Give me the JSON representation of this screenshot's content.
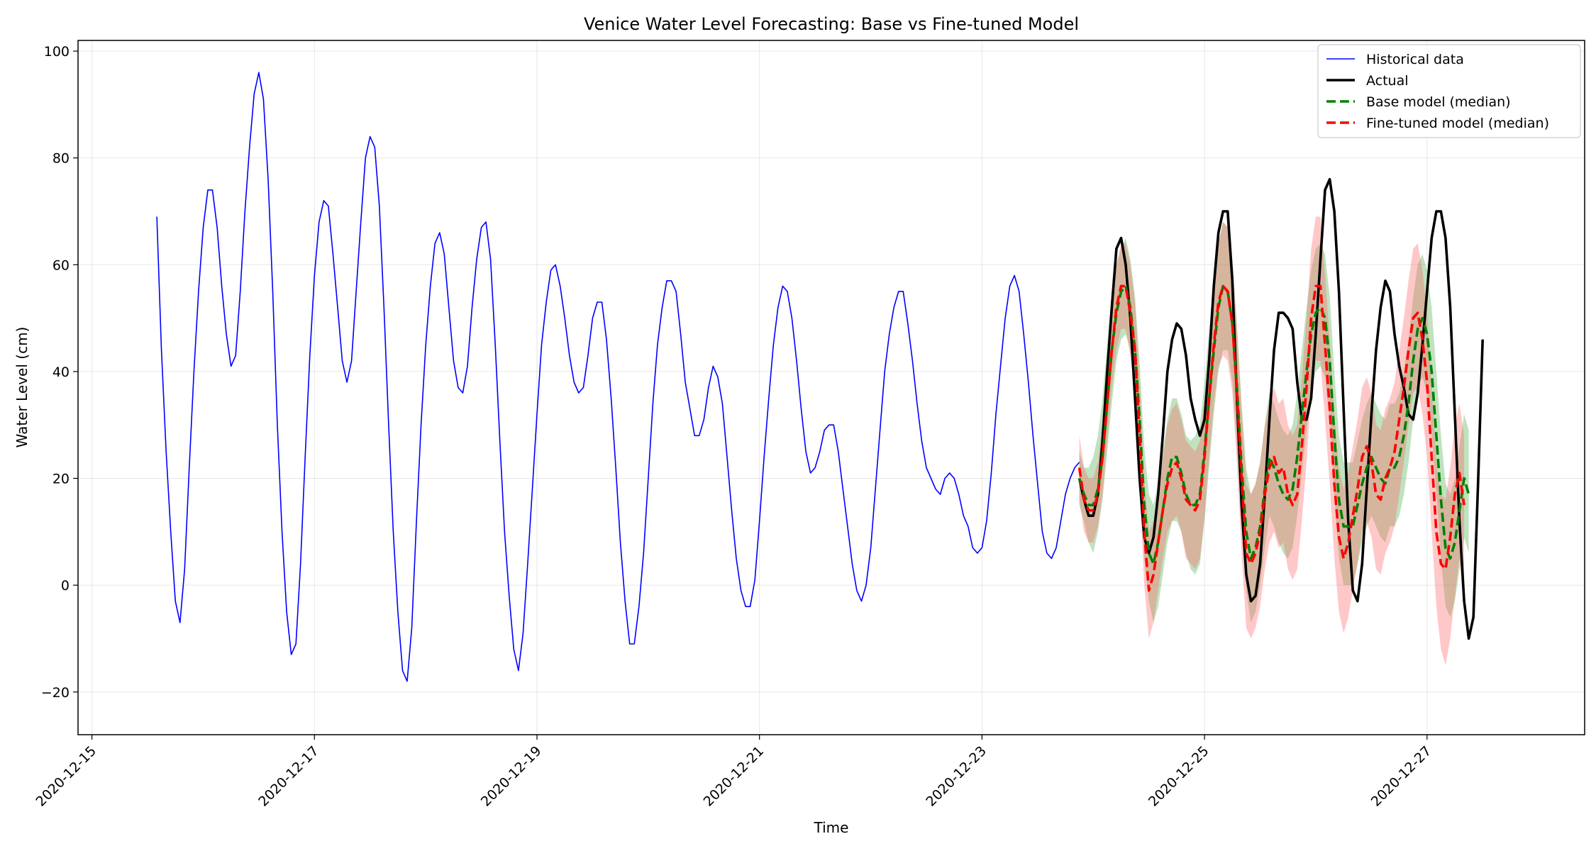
{
  "chart_data": {
    "type": "line",
    "title": "Venice Water Level Forecasting: Base vs Fine-tuned Model",
    "xlabel": "Time",
    "ylabel": "Water Level (cm)",
    "xlim": [
      "2020-12-14T21:00",
      "2020-12-28T10:00"
    ],
    "ylim": [
      -28,
      102
    ],
    "x_ticks": [
      "2020-12-15",
      "2020-12-17",
      "2020-12-19",
      "2020-12-21",
      "2020-12-23",
      "2020-12-25",
      "2020-12-27"
    ],
    "y_ticks": [
      -20,
      0,
      20,
      40,
      60,
      80,
      100
    ],
    "grid": true,
    "legend_position": "top-right",
    "series": [
      {
        "name": "Historical data",
        "color": "#0000ff",
        "style": "solid",
        "start": "2020-12-15T14:00",
        "step_hours": 1,
        "values": [
          69,
          44,
          25,
          10,
          -3,
          -7,
          3,
          22,
          40,
          55,
          67,
          74,
          74,
          67,
          56,
          47,
          41,
          43,
          55,
          70,
          82,
          92,
          96,
          91,
          76,
          55,
          30,
          10,
          -5,
          -13,
          -11,
          4,
          24,
          43,
          58,
          68,
          72,
          71,
          62,
          52,
          42,
          38,
          42,
          55,
          68,
          80,
          84,
          82,
          71,
          52,
          30,
          10,
          -5,
          -16,
          -18,
          -8,
          12,
          30,
          45,
          56,
          64,
          66,
          62,
          52,
          42,
          37,
          36,
          41,
          52,
          61,
          67,
          68,
          61,
          45,
          27,
          10,
          -2,
          -12,
          -16,
          -9,
          4,
          18,
          32,
          45,
          53,
          59,
          60,
          56,
          50,
          43,
          38,
          36,
          37,
          43,
          50,
          53,
          53,
          46,
          35,
          22,
          8,
          -3,
          -11,
          -11,
          -4,
          6,
          20,
          34,
          45,
          52,
          57,
          57,
          55,
          47,
          38,
          33,
          28,
          28,
          31,
          37,
          41,
          39,
          34,
          24,
          14,
          5,
          -1,
          -4,
          -4,
          1,
          12,
          24,
          35,
          45,
          52,
          56,
          55,
          50,
          42,
          33,
          25,
          21,
          22,
          25,
          29,
          30,
          30,
          25,
          18,
          11,
          4,
          -1,
          -3,
          0,
          7,
          18,
          29,
          40,
          47,
          52,
          55,
          55,
          49,
          42,
          34,
          27,
          22,
          20,
          18,
          17,
          20,
          21,
          20,
          17,
          13,
          11,
          7,
          6,
          7,
          12,
          21,
          32,
          41,
          50,
          56,
          58,
          55,
          47,
          38,
          28,
          19,
          10,
          6,
          5,
          7,
          12,
          17,
          20,
          22,
          23
        ]
      },
      {
        "name": "Actual",
        "color": "#000000",
        "style": "solid",
        "start": "2020-12-23T21:00",
        "step_hours": 1,
        "values": [
          20,
          16,
          13,
          13,
          17,
          27,
          40,
          52,
          63,
          65,
          60,
          50,
          35,
          20,
          9,
          6,
          9,
          17,
          28,
          40,
          46,
          49,
          48,
          43,
          35,
          31,
          28,
          31,
          42,
          56,
          66,
          70,
          70,
          57,
          35,
          15,
          2,
          -3,
          -2,
          4,
          17,
          31,
          44,
          51,
          51,
          50,
          48,
          38,
          31,
          31,
          35,
          47,
          61,
          74,
          76,
          70,
          55,
          33,
          12,
          -1,
          -3,
          4,
          18,
          32,
          44,
          52,
          57,
          55,
          47,
          41,
          37,
          32,
          31,
          36,
          45,
          55,
          65,
          70,
          70,
          65,
          52,
          32,
          12,
          -3,
          -10,
          -6,
          19,
          46
        ]
      },
      {
        "name": "Base model (median)",
        "color": "#008000",
        "style": "dashed",
        "band_color": "#2ca02c",
        "start": "2020-12-23T21:00",
        "step_hours": 1,
        "values": [
          20,
          17,
          15,
          15,
          18,
          24,
          34,
          44,
          51,
          55,
          56,
          52,
          44,
          31,
          15,
          6,
          4,
          8,
          14,
          20,
          24,
          24,
          21,
          17,
          15,
          15,
          17,
          25,
          35,
          44,
          52,
          56,
          55,
          49,
          37,
          22,
          10,
          5,
          7,
          11,
          18,
          24,
          22,
          19,
          17,
          16,
          18,
          24,
          32,
          40,
          47,
          51,
          52,
          50,
          42,
          28,
          16,
          11,
          11,
          11,
          15,
          19,
          22,
          24,
          22,
          20,
          19,
          22,
          22,
          24,
          28,
          34,
          42,
          48,
          50,
          47,
          40,
          28,
          16,
          7,
          5,
          8,
          14,
          20,
          17
        ]
      },
      {
        "name": "Fine-tuned model (median)",
        "color": "#ff0000",
        "style": "dashed",
        "band_color": "#ff6060",
        "start": "2020-12-23T21:00",
        "step_hours": 1,
        "values": [
          22,
          16,
          14,
          14,
          17,
          24,
          34,
          44,
          52,
          56,
          56,
          51,
          44,
          28,
          10,
          -1,
          2,
          8,
          14,
          19,
          22,
          23,
          20,
          16,
          15,
          14,
          16,
          24,
          35,
          45,
          53,
          56,
          55,
          49,
          36,
          20,
          6,
          4,
          6,
          10,
          17,
          22,
          24,
          21,
          22,
          17,
          15,
          17,
          26,
          37,
          50,
          56,
          56,
          45,
          33,
          19,
          9,
          5,
          8,
          13,
          18,
          24,
          26,
          23,
          17,
          16,
          20,
          22,
          25,
          31,
          37,
          44,
          50,
          51,
          46,
          38,
          24,
          10,
          4,
          3,
          9,
          17,
          21,
          15
        ]
      }
    ],
    "bands": [
      {
        "series": "Base model (median)",
        "color": "#2ca02c",
        "opacity": 0.3,
        "lower": [
          15,
          12,
          8,
          6,
          10,
          16,
          25,
          34,
          42,
          46,
          47,
          44,
          35,
          22,
          5,
          -3,
          -7,
          -4,
          2,
          8,
          12,
          12,
          10,
          6,
          3,
          2,
          4,
          12,
          22,
          32,
          40,
          44,
          44,
          38,
          26,
          11,
          -1,
          -7,
          -5,
          0,
          7,
          13,
          11,
          8,
          6,
          5,
          7,
          13,
          21,
          29,
          36,
          40,
          41,
          39,
          31,
          17,
          5,
          0,
          0,
          0,
          4,
          8,
          11,
          13,
          11,
          9,
          8,
          11,
          11,
          13,
          17,
          23,
          31,
          37,
          39,
          36,
          29,
          17,
          5,
          -4,
          -6,
          -3,
          3,
          9,
          6
        ],
        "upper": [
          25,
          22,
          22,
          24,
          28,
          35,
          45,
          55,
          60,
          63,
          65,
          61,
          54,
          42,
          26,
          17,
          15,
          19,
          25,
          31,
          35,
          35,
          32,
          28,
          27,
          28,
          30,
          38,
          48,
          57,
          64,
          68,
          67,
          61,
          49,
          34,
          22,
          17,
          19,
          23,
          30,
          36,
          34,
          31,
          29,
          28,
          30,
          36,
          44,
          52,
          59,
          63,
          64,
          62,
          54,
          40,
          28,
          23,
          23,
          23,
          27,
          31,
          34,
          36,
          34,
          32,
          31,
          34,
          34,
          36,
          40,
          46,
          54,
          60,
          62,
          59,
          52,
          40,
          28,
          19,
          17,
          20,
          26,
          32,
          29
        ]
      },
      {
        "series": "Fine-tuned model (median)",
        "color": "#ff6060",
        "opacity": 0.35,
        "lower": [
          16,
          10,
          8,
          8,
          11,
          17,
          27,
          37,
          44,
          48,
          48,
          43,
          36,
          19,
          0,
          -10,
          -7,
          -1,
          5,
          10,
          12,
          13,
          10,
          5,
          4,
          3,
          5,
          13,
          24,
          34,
          41,
          43,
          42,
          36,
          23,
          6,
          -8,
          -10,
          -8,
          -4,
          3,
          8,
          10,
          7,
          8,
          3,
          1,
          3,
          12,
          23,
          36,
          42,
          42,
          31,
          19,
          5,
          -5,
          -9,
          -6,
          -1,
          4,
          10,
          12,
          9,
          3,
          2,
          6,
          8,
          11,
          17,
          23,
          30,
          36,
          37,
          32,
          24,
          10,
          -4,
          -12,
          -15,
          -10,
          -2,
          5,
          -5
        ],
        "upper": [
          28,
          22,
          20,
          20,
          23,
          31,
          42,
          52,
          60,
          64,
          64,
          60,
          53,
          38,
          20,
          10,
          12,
          18,
          24,
          30,
          33,
          34,
          31,
          27,
          26,
          25,
          27,
          35,
          46,
          56,
          64,
          68,
          67,
          61,
          48,
          33,
          19,
          17,
          19,
          23,
          30,
          35,
          37,
          34,
          35,
          30,
          28,
          30,
          39,
          50,
          63,
          69,
          69,
          58,
          46,
          32,
          22,
          18,
          21,
          26,
          31,
          37,
          39,
          36,
          30,
          29,
          33,
          35,
          38,
          44,
          50,
          57,
          63,
          64,
          59,
          51,
          37,
          23,
          17,
          16,
          22,
          30,
          34,
          28
        ]
      }
    ]
  }
}
